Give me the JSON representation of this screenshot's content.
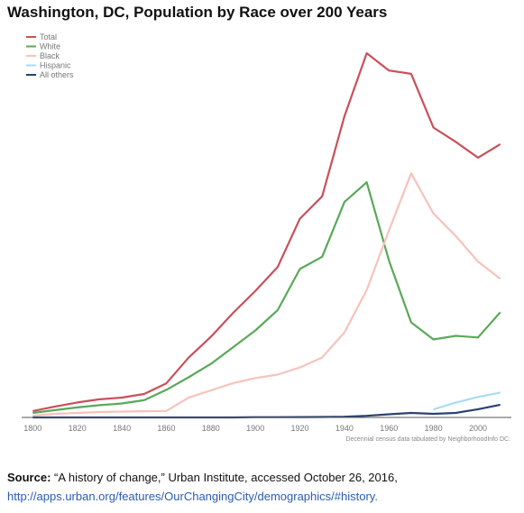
{
  "title": "Washington, DC, Population by Race over 200 Years",
  "note": "Decennial census data tabulated by NeighborhoodInfo DC.",
  "source": {
    "label": "Source:",
    "text": " “A history of change,” Urban Institute, accessed October 26, 2016,",
    "url": "http://apps.urban.org/features/OurChangingCity/demographics/#history."
  },
  "colors": {
    "Total": "#c8505a",
    "White": "#5aa85a",
    "Black": "#f7c2bc",
    "Hispanic": "#a9dcef",
    "All others": "#2c4173"
  },
  "chart_data": {
    "type": "line",
    "title": "Washington, DC, Population by Race over 200 Years",
    "xlabel": "",
    "ylabel": "",
    "x": [
      1800,
      1810,
      1820,
      1830,
      1840,
      1850,
      1860,
      1870,
      1880,
      1890,
      1900,
      1910,
      1920,
      1930,
      1940,
      1950,
      1960,
      1970,
      1980,
      1990,
      2000,
      2010
    ],
    "x_ticks": [
      "1800",
      "1820",
      "1840",
      "1860",
      "1880",
      "1900",
      "1920",
      "1940",
      "1960",
      "1980",
      "2000"
    ],
    "xlim": [
      1795,
      2015
    ],
    "ylim": [
      0,
      820000
    ],
    "grid": false,
    "legend": "top-left",
    "series": [
      {
        "name": "Total",
        "values": [
          14000,
          24000,
          33000,
          40000,
          43700,
          51700,
          75000,
          131700,
          177600,
          230400,
          278700,
          331000,
          437600,
          486900,
          663100,
          802200,
          764000,
          756700,
          638300,
          606900,
          572100,
          601700
        ]
      },
      {
        "name": "White",
        "values": [
          10000,
          16000,
          22000,
          27000,
          30700,
          37900,
          60800,
          88300,
          118000,
          154700,
          191500,
          236100,
          326900,
          353900,
          474300,
          517900,
          345300,
          209300,
          171800,
          179700,
          176100,
          231500
        ]
      },
      {
        "name": "Black",
        "values": [
          4000,
          8000,
          10000,
          12000,
          13000,
          13700,
          14300,
          43400,
          59600,
          75600,
          86700,
          94400,
          109900,
          132100,
          187300,
          280800,
          411700,
          537700,
          448900,
          399600,
          343300,
          305100
        ]
      },
      {
        "name": "Hispanic",
        "values": [
          null,
          null,
          null,
          null,
          null,
          null,
          null,
          null,
          null,
          null,
          null,
          null,
          null,
          null,
          null,
          null,
          null,
          null,
          17700,
          32700,
          45000,
          54700
        ]
      },
      {
        "name": "All others",
        "values": [
          0,
          0,
          0,
          0,
          0,
          0,
          0,
          0,
          0,
          0,
          500,
          500,
          800,
          900,
          1500,
          3500,
          6900,
          10000,
          8000,
          10000,
          18000,
          28000
        ]
      }
    ]
  }
}
